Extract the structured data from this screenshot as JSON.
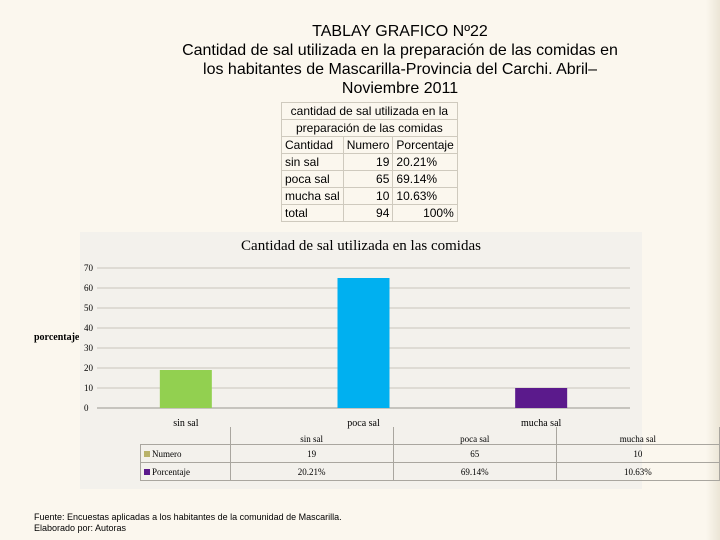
{
  "title": {
    "line1": "TABLAY GRAFICO Nº22",
    "line2": "Cantidad de sal utilizada en la preparación de las comidas en",
    "line3": "los habitantes de Mascarilla-Provincia del Carchi. Abril–",
    "line4": "Noviembre 2011"
  },
  "summary_table": {
    "caption1": "cantidad de sal utilizada en la",
    "caption2": "preparación de las comidas",
    "headers": [
      "Cantidad",
      "Numero",
      "Porcentaje"
    ],
    "rows": [
      {
        "cantidad": "sin sal",
        "numero": "19",
        "porcentaje": "20.21%"
      },
      {
        "cantidad": "poca sal",
        "numero": "65",
        "porcentaje": "69.14%"
      },
      {
        "cantidad": "mucha sal",
        "numero": "10",
        "porcentaje": "10.63%"
      },
      {
        "cantidad": "total",
        "numero": "94",
        "porcentaje": "100%"
      }
    ]
  },
  "chart_data": {
    "type": "bar",
    "title": "Cantidad de sal utilizada en las comidas",
    "xlabel": "",
    "ylabel": "porcentaje",
    "ylim": [
      0,
      70
    ],
    "yticks": [
      0,
      10,
      20,
      30,
      40,
      50,
      60,
      70
    ],
    "grid": true,
    "categories": [
      "sin sal",
      "poca sal",
      "mucha sal"
    ],
    "series": [
      {
        "name": "Numero",
        "values": [
          19,
          65,
          10
        ]
      },
      {
        "name": "Porcentaje",
        "values": [
          20.21,
          69.14,
          10.63
        ],
        "labels": [
          "20.21%",
          "69.14%",
          "10.63%"
        ]
      }
    ],
    "bar_colors": [
      "#92d050",
      "#00b0f0",
      "#5b1a8c"
    ],
    "legend_colors": {
      "Numero": "#b9b26a",
      "Porcentaje": "#5b1a8c"
    }
  },
  "data_table": {
    "row1_label": "Numero",
    "row2_label": "Porcentaje"
  },
  "footer": {
    "line1": "Fuente: Encuestas aplicadas a los habitantes de la comunidad de Mascarilla.",
    "line2": "Elaborado por: Autoras"
  }
}
